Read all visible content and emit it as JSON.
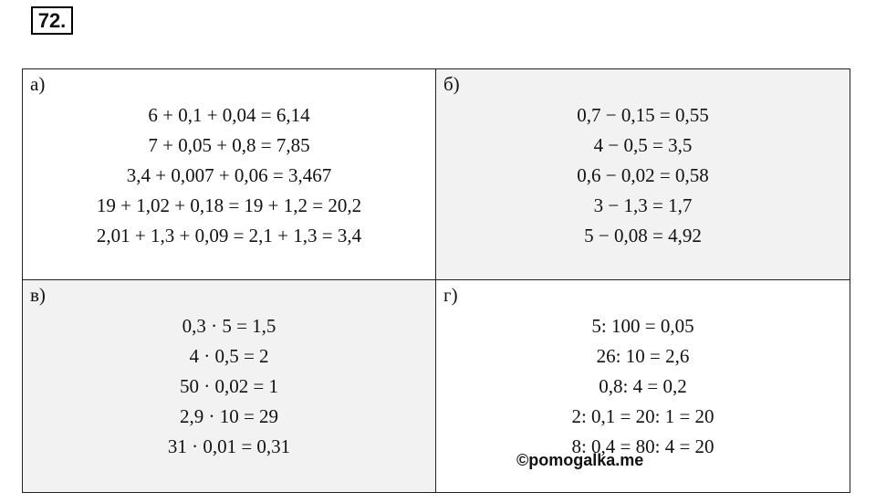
{
  "header": {
    "number": "72."
  },
  "table": {
    "cells": [
      {
        "label": "а)",
        "lines": [
          "6 + 0,1 + 0,04 = 6,14",
          "7 + 0,05 + 0,8 = 7,85",
          "3,4 + 0,007 + 0,06 = 3,467",
          "19 + 1,02 + 0,18 = 19 + 1,2 = 20,2",
          "2,01 + 1,3 + 0,09 = 2,1 + 1,3 = 3,4"
        ]
      },
      {
        "label": "б)",
        "lines": [
          "0,7 − 0,15 = 0,55",
          "4 − 0,5 = 3,5",
          "0,6 − 0,02 = 0,58",
          "3 − 1,3 = 1,7",
          "5 − 0,08 = 4,92"
        ]
      },
      {
        "label": "в)",
        "lines": [
          "0,3 · 5 = 1,5",
          "4 · 0,5 = 2",
          "50 · 0,02 = 1",
          "2,9 · 10 = 29",
          "31 · 0,01 = 0,31"
        ]
      },
      {
        "label": "г)",
        "lines": [
          "5: 100 = 0,05",
          "26: 10 = 2,6",
          "0,8: 4 = 0,2",
          "2: 0,1 = 20: 1 = 20",
          "8: 0,4 = 80: 4 = 20"
        ]
      }
    ]
  },
  "watermark": "©pomogalka.me"
}
